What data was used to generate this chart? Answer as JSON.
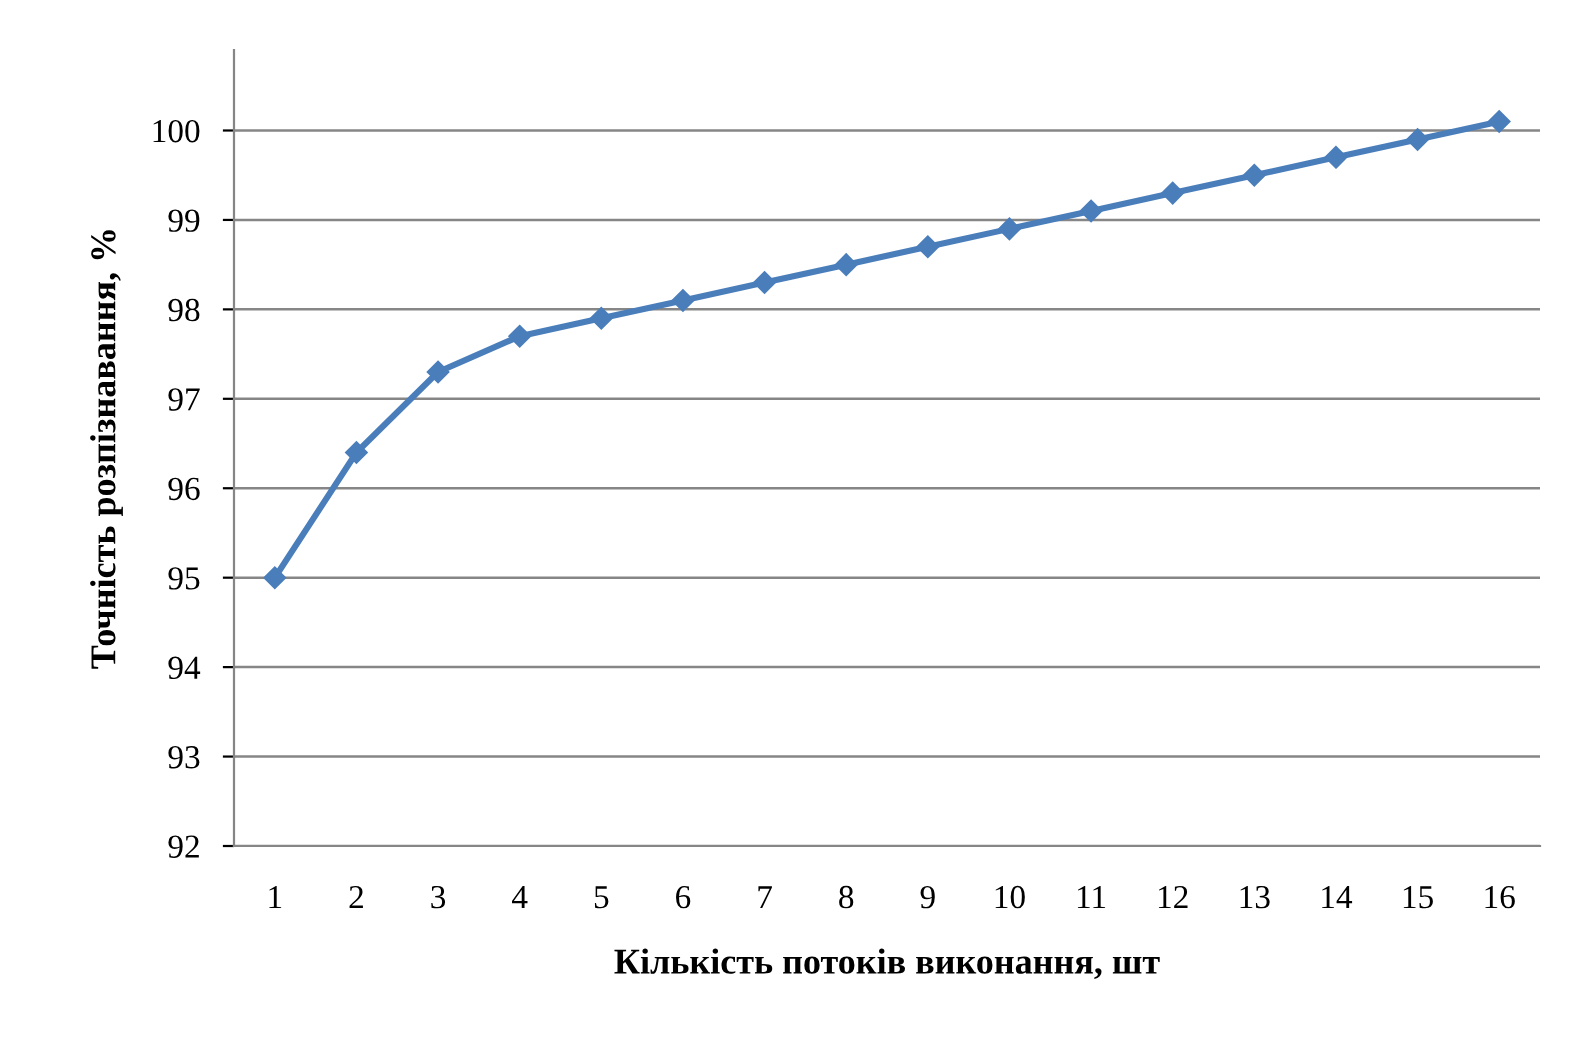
{
  "chart_data": {
    "type": "line",
    "xlabel": "Кількість потоків виконання, шт",
    "ylabel": "Точність розпізнавання, %",
    "categories": [
      "1",
      "2",
      "3",
      "4",
      "5",
      "6",
      "7",
      "8",
      "9",
      "10",
      "11",
      "12",
      "13",
      "14",
      "15",
      "16"
    ],
    "series": [
      {
        "color": "#4a7ebb",
        "values": [
          95,
          96.4,
          97.3,
          97.7,
          97.9,
          98.1,
          98.3,
          98.5,
          98.7,
          98.9,
          99.1,
          99.3,
          99.5,
          99.7,
          99.9,
          100.1
        ]
      }
    ],
    "ylim": [
      92,
      100.9
    ],
    "yticks": [
      92,
      93,
      94,
      95,
      96,
      97,
      98,
      99,
      100
    ],
    "grid": "y",
    "marker": "diamond",
    "line_style": "solid",
    "legend": false
  }
}
